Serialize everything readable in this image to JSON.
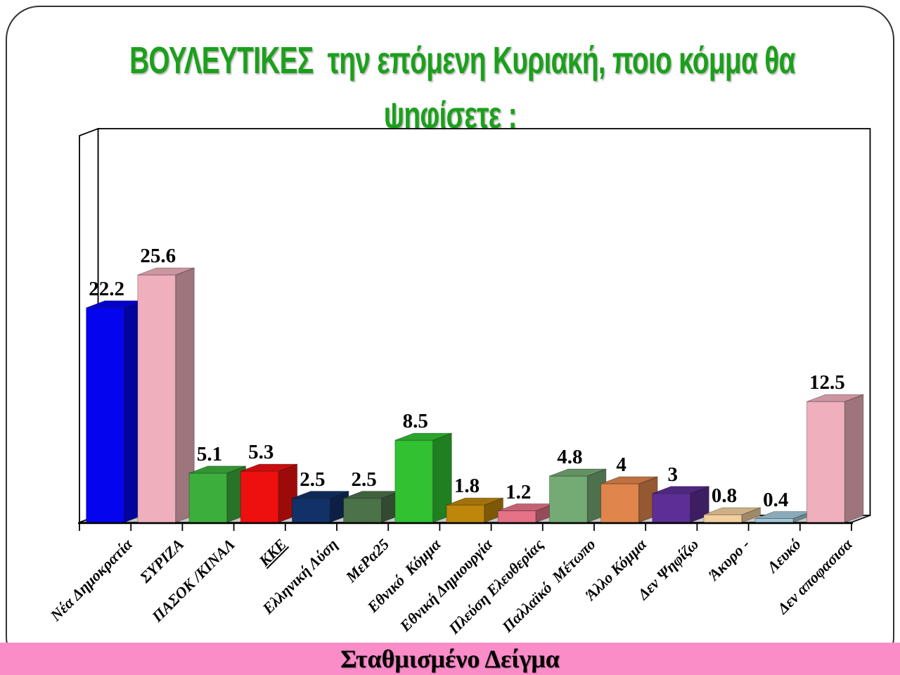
{
  "title": {
    "line1": "ΒΟΥΛΕΥΤΙΚΕΣ  την επόμενη Κυριακή, ποιο κόμμα θα",
    "line2": "ψηφίσετε ;",
    "color": "#1CA01C"
  },
  "footer": {
    "label": "Σταθμισμένο Δείγμα",
    "bg_color": "#FA8CC8"
  },
  "chart_data": {
    "type": "bar",
    "style": "3d-column",
    "title": "ΒΟΥΛΕΥΤΙΚΕΣ  την επόμενη Κυριακή, ποιο κόμμα θα ψηφίσετε ;",
    "xlabel": "",
    "ylabel": "",
    "ylim": [
      0,
      40
    ],
    "grid": false,
    "legend": "none",
    "categories": [
      "Νέα Δημοκρατία",
      "ΣΥΡΙΖΑ",
      "ΠΑΣΟΚ /ΚΙΝΑΛ",
      "ΚΚΕ",
      "Ελληνική Λύση",
      "ΜεΡα25",
      "Εθνικό  Κόμμα",
      "Εθνική Δημιουργία",
      "Πλεύση Ελευθερίας",
      "Παλλαϊκό  Μέτωπο",
      "Άλλο Κόμμα",
      "Δεν Ψηφίζω",
      "Άκυρο -",
      "Λευκό",
      "Δεν αποφασισα"
    ],
    "values": [
      22.2,
      25.6,
      5.1,
      5.3,
      2.5,
      2.5,
      8.5,
      1.8,
      1.2,
      4.8,
      4,
      3,
      0.8,
      0.4,
      12.5
    ],
    "value_labels": [
      "22.2",
      "25.6",
      "5.1",
      "5.3",
      "2.5",
      "2.5",
      "8.5",
      "1.8",
      "1.2",
      "4.8",
      "4",
      "3",
      "0.8",
      "0.4",
      "12.5"
    ],
    "bar_colors": [
      "#0504EE",
      "#EFAFBD",
      "#3CAE3C",
      "#EE0F0F",
      "#123168",
      "#4B7248",
      "#31C131",
      "#BE860B",
      "#E57287",
      "#74AA74",
      "#E0854C",
      "#5C2E96",
      "#F2CF9E",
      "#A3C8DA",
      "#EFAFBD"
    ],
    "underlined_category_index": 3,
    "wall_color": "#FFFFFF",
    "floor_color": "#C9C9C9"
  }
}
